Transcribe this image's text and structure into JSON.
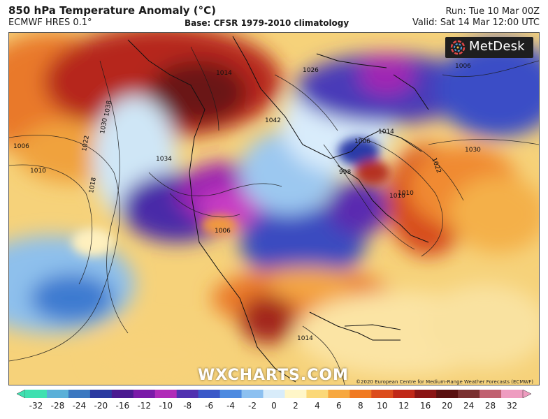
{
  "header": {
    "title": "850 hPa Temperature Anomaly (°C)",
    "model": "ECMWF HRES 0.1°",
    "base": "Base: CFSR 1979-2010 climatology",
    "run": "Run: Tue 10 Mar 00Z",
    "valid": "Valid: Sat 14 Mar 12:00 UTC"
  },
  "map": {
    "logo_text": "MetDesk",
    "watermark": "WXCHARTS.COM",
    "copyright": "©2020 European Centre for Medium-Range Weather Forecasts (ECMWF)",
    "isobar_labels": [
      "1006",
      "1010",
      "1018",
      "1022",
      "1030",
      "1034",
      "1038",
      "1014",
      "1010",
      "1026",
      "1006",
      "1030",
      "1022",
      "1014",
      "1006",
      "998",
      "1010",
      "1006",
      "1014",
      "1042"
    ]
  },
  "colorbar": {
    "ticks": [
      "-32",
      "-28",
      "-24",
      "-20",
      "-16",
      "-12",
      "-10",
      "-8",
      "-6",
      "-4",
      "-2",
      "0",
      "2",
      "4",
      "6",
      "8",
      "10",
      "12",
      "16",
      "20",
      "24",
      "28",
      "32"
    ],
    "colors": [
      "#3fe0b0",
      "#5ab0d8",
      "#3b78c0",
      "#2a3aa0",
      "#4a1a90",
      "#7a1aa8",
      "#b02ab8",
      "#5030b0",
      "#3a58c8",
      "#4d8ae0",
      "#8cc0f0",
      "#d8ecfa",
      "#fff6c8",
      "#fbd878",
      "#f7a840",
      "#f07a22",
      "#dc4c1c",
      "#c02818",
      "#8a1414",
      "#5a1010",
      "#7a3030",
      "#c06070",
      "#ee9cc0"
    ]
  }
}
